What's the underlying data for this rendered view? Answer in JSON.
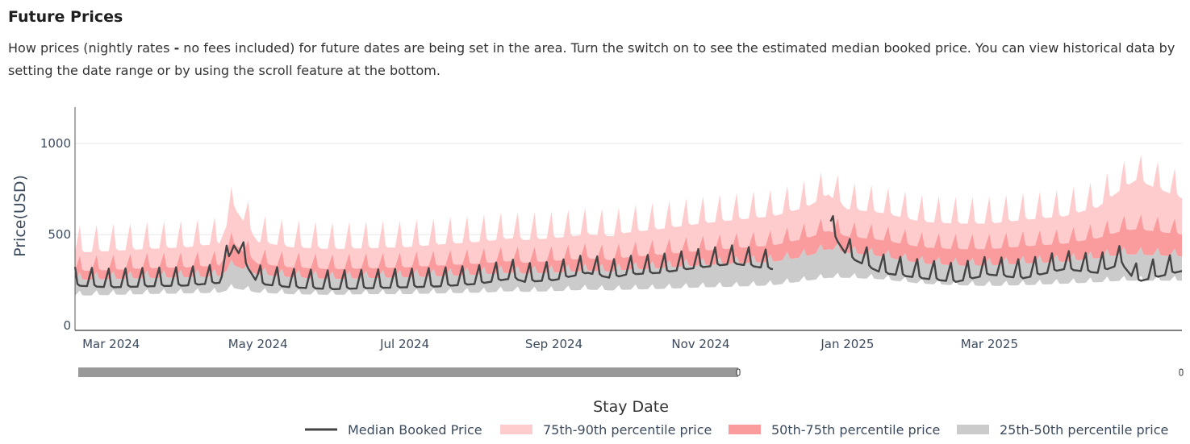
{
  "header": {
    "title": "Future Prices",
    "desc_a": "How prices (nightly rates ",
    "desc_sep": "-",
    "desc_b": " no fees included) for future dates are being set in the area. Turn the switch on to see the estimated median booked price. You can view historical data by setting the date range or by using the scroll feature at the bottom."
  },
  "colors": {
    "p75_90": "#ffcccd",
    "p50_75": "#fa9b9d",
    "p25_50": "#cbcbcb",
    "median": "#444444",
    "slider": "#999999"
  },
  "chart_data": {
    "type": "area",
    "xlabel": "Stay Date",
    "ylabel": "Price(USD)",
    "x_range": [
      "2024-02-15",
      "2025-05-20"
    ],
    "ylim": [
      0,
      1200
    ],
    "y_ticks": [
      0,
      500,
      1000
    ],
    "x_ticks": [
      "Mar 2024",
      "May 2024",
      "Jul 2024",
      "Sep 2024",
      "Nov 2024",
      "Jan 2025",
      "Mar 2025"
    ],
    "grid": "horizontal",
    "legend_position": "bottom-right",
    "series": [
      {
        "name": "Median Booked Price",
        "kind": "line"
      },
      {
        "name": "75th-90th percentile price",
        "kind": "band"
      },
      {
        "name": "50th-75th percentile price",
        "kind": "band"
      },
      {
        "name": "25th-50th percentile price",
        "kind": "band"
      }
    ],
    "x": [
      "2024-02-15",
      "2024-03-01",
      "2024-03-15",
      "2024-04-01",
      "2024-04-15",
      "2024-04-21",
      "2024-05-01",
      "2024-05-15",
      "2024-06-01",
      "2024-06-15",
      "2024-07-01",
      "2024-07-15",
      "2024-08-01",
      "2024-08-15",
      "2024-08-20",
      "2024-09-01",
      "2024-09-15",
      "2024-09-25",
      "2024-10-01",
      "2024-10-15",
      "2024-11-01",
      "2024-11-15",
      "2024-12-01",
      "2024-12-15",
      "2024-12-24",
      "2025-01-01",
      "2025-01-15",
      "2025-02-01",
      "2025-02-15",
      "2025-03-01",
      "2025-03-15",
      "2025-04-01",
      "2025-04-15",
      "2025-04-25",
      "2025-05-01",
      "2025-05-20"
    ],
    "p25": [
      200,
      205,
      210,
      215,
      220,
      250,
      220,
      210,
      205,
      210,
      210,
      215,
      220,
      230,
      225,
      230,
      240,
      235,
      240,
      245,
      255,
      260,
      270,
      300,
      320,
      320,
      310,
      280,
      270,
      265,
      270,
      280,
      290,
      300,
      300,
      300
    ],
    "p50": [
      250,
      255,
      260,
      265,
      270,
      330,
      280,
      265,
      255,
      260,
      265,
      270,
      280,
      290,
      285,
      290,
      300,
      295,
      305,
      315,
      330,
      340,
      350,
      380,
      420,
      400,
      380,
      340,
      330,
      330,
      340,
      350,
      370,
      390,
      390,
      380
    ],
    "p75": [
      300,
      305,
      315,
      320,
      330,
      450,
      340,
      320,
      310,
      315,
      320,
      330,
      340,
      355,
      345,
      355,
      370,
      360,
      375,
      390,
      410,
      425,
      440,
      480,
      520,
      490,
      470,
      430,
      420,
      420,
      435,
      450,
      480,
      520,
      530,
      500
    ],
    "p90": [
      400,
      410,
      420,
      430,
      450,
      650,
      460,
      430,
      420,
      425,
      430,
      445,
      460,
      480,
      470,
      480,
      500,
      490,
      510,
      530,
      560,
      580,
      600,
      650,
      720,
      640,
      620,
      570,
      560,
      560,
      580,
      600,
      650,
      750,
      800,
      700
    ],
    "median": [
      260,
      250,
      255,
      260,
      275,
      480,
      270,
      250,
      240,
      245,
      250,
      255,
      270,
      300,
      280,
      290,
      330,
      300,
      320,
      330,
      360,
      380,
      350,
      null,
      580,
      420,
      330,
      300,
      280,
      320,
      300,
      350,
      330,
      380,
      280,
      340
    ]
  },
  "legend": {
    "median": "Median Booked Price",
    "p75_90": "75th-90th percentile price",
    "p50_75": "50th-75th percentile price",
    "p25_50": "25th-50th percentile price"
  },
  "range_slider": {
    "selected_from": 0.0,
    "selected_to": 0.598
  }
}
